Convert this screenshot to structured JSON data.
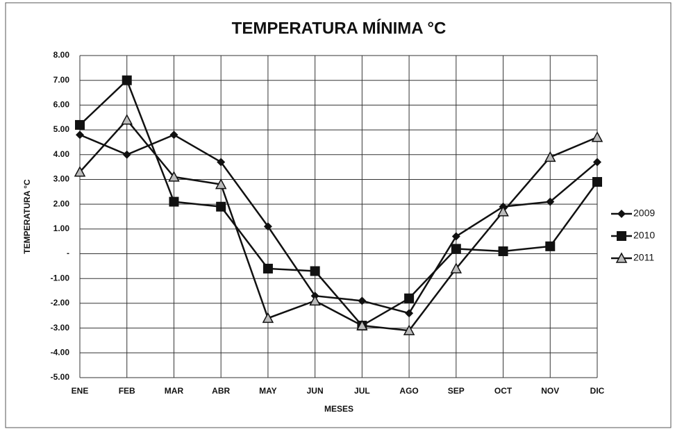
{
  "chart_data": {
    "type": "line",
    "title": "TEMPERATURA MÍNIMA °C",
    "x_label": "MESES",
    "y_label": "TEMPERATURA °C",
    "categories": [
      "ENE",
      "FEB",
      "MAR",
      "ABR",
      "MAY",
      "JUN",
      "JUL",
      "AGO",
      "SEP",
      "OCT",
      "NOV",
      "DIC"
    ],
    "series": [
      {
        "name": "2009",
        "color": "#111111",
        "marker": "diamond",
        "values": [
          4.8,
          4.0,
          4.8,
          3.7,
          1.1,
          -1.7,
          -1.9,
          -2.4,
          0.7,
          1.9,
          2.1,
          3.7
        ]
      },
      {
        "name": "2010",
        "color": "#111111",
        "marker": "square",
        "values": [
          5.2,
          7.0,
          2.1,
          1.9,
          -0.6,
          -0.7,
          -2.9,
          -1.8,
          0.2,
          0.1,
          0.3,
          2.9
        ]
      },
      {
        "name": "2011",
        "color": "#111111",
        "marker": "triangle",
        "values": [
          3.3,
          5.4,
          3.1,
          2.8,
          -2.6,
          -1.9,
          -2.9,
          -3.1,
          -0.6,
          1.7,
          3.9,
          4.7
        ]
      }
    ],
    "ylim": [
      -5,
      8
    ],
    "yticks": [
      {
        "value": 8,
        "label": "8.00"
      },
      {
        "value": 7,
        "label": "7.00"
      },
      {
        "value": 6,
        "label": "6.00"
      },
      {
        "value": 5,
        "label": "5.00"
      },
      {
        "value": 4,
        "label": "4.00"
      },
      {
        "value": 3,
        "label": "3.00"
      },
      {
        "value": 2,
        "label": "2.00"
      },
      {
        "value": 1,
        "label": "1.00"
      },
      {
        "value": 0,
        "label": "-"
      },
      {
        "value": -1,
        "label": "-1.00"
      },
      {
        "value": -2,
        "label": "-2.00"
      },
      {
        "value": -3,
        "label": "-3.00"
      },
      {
        "value": -4,
        "label": "-4.00"
      },
      {
        "value": -5,
        "label": "-5.00"
      }
    ],
    "grid": true,
    "legend": "right"
  }
}
